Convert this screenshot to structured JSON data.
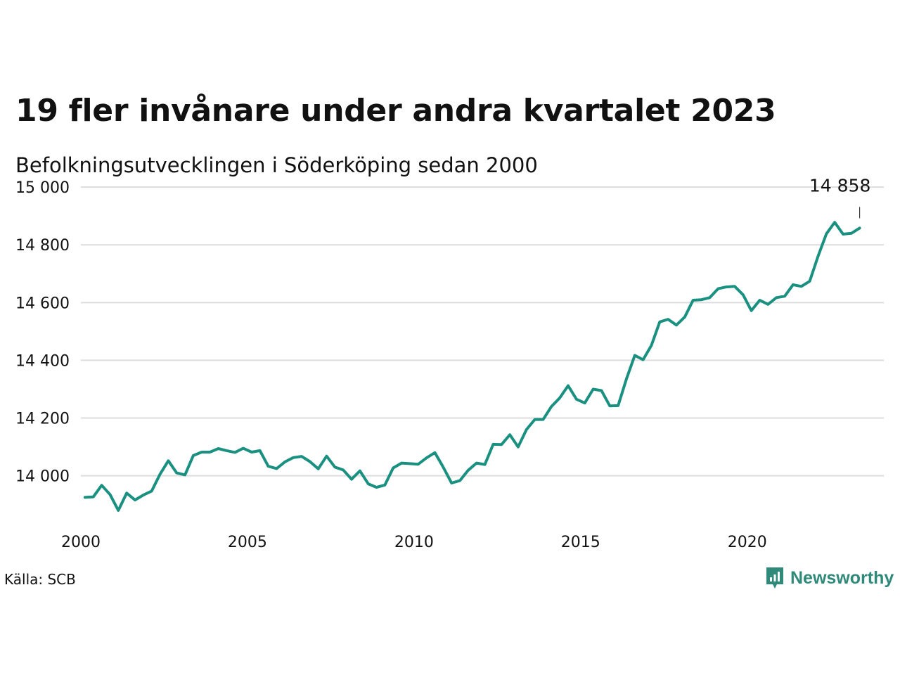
{
  "title": "19 fler invånare under andra kvartalet 2023",
  "subtitle": "Befolkningsutvecklingen i Söderköping sedan 2000",
  "source": "Källa: SCB",
  "brand": "Newsworthy",
  "colors": {
    "line": "#1a9080",
    "grid": "#dddddd",
    "brand": "#2f8a7a"
  },
  "chart_data": {
    "type": "line",
    "title": "19 fler invånare under andra kvartalet 2023",
    "subtitle": "Befolkningsutvecklingen i Söderköping sedan 2000",
    "xlabel": "",
    "ylabel": "",
    "xlim": [
      2000,
      2024.1
    ],
    "ylim": [
      13870,
      15010
    ],
    "yticks": [
      14000,
      14200,
      14400,
      14600,
      14800,
      15000
    ],
    "ytick_labels": [
      "14 000",
      "14 200",
      "14 400",
      "14 600",
      "14 800",
      "15 000"
    ],
    "xticks": [
      2000,
      2005,
      2010,
      2015,
      2020
    ],
    "xtick_labels": [
      "2000",
      "2005",
      "2010",
      "2015",
      "2020"
    ],
    "grid": true,
    "annotation": {
      "x": 2023.375,
      "y": 14858,
      "label": "14 858"
    },
    "series": [
      {
        "x": [
          2000.125,
          2000.375,
          2000.625,
          2000.875,
          2001.125,
          2001.375,
          2001.625,
          2001.875,
          2002.125,
          2002.375,
          2002.625,
          2002.875,
          2003.125,
          2003.375,
          2003.625,
          2003.875,
          2004.125,
          2004.375,
          2004.625,
          2004.875,
          2005.125,
          2005.375,
          2005.625,
          2005.875,
          2006.125,
          2006.375,
          2006.625,
          2006.875,
          2007.125,
          2007.375,
          2007.625,
          2007.875,
          2008.125,
          2008.375,
          2008.625,
          2008.875,
          2009.125,
          2009.375,
          2009.625,
          2009.875,
          2010.125,
          2010.375,
          2010.625,
          2010.875,
          2011.125,
          2011.375,
          2011.625,
          2011.875,
          2012.125,
          2012.375,
          2012.625,
          2012.875,
          2013.125,
          2013.375,
          2013.625,
          2013.875,
          2014.125,
          2014.375,
          2014.625,
          2014.875,
          2015.125,
          2015.375,
          2015.625,
          2015.875,
          2016.125,
          2016.375,
          2016.625,
          2016.875,
          2017.125,
          2017.375,
          2017.625,
          2017.875,
          2018.125,
          2018.375,
          2018.625,
          2018.875,
          2019.125,
          2019.375,
          2019.625,
          2019.875,
          2020.125,
          2020.375,
          2020.625,
          2020.875,
          2021.125,
          2021.375,
          2021.625,
          2021.875,
          2022.125,
          2022.375,
          2022.625,
          2022.875,
          2023.125,
          2023.375
        ],
        "values": [
          13925,
          13927,
          13967,
          13935,
          13880,
          13940,
          13916,
          13933,
          13947,
          14005,
          14052,
          14010,
          14003,
          14070,
          14082,
          14082,
          14094,
          14087,
          14081,
          14095,
          14082,
          14087,
          14033,
          14025,
          14048,
          14063,
          14067,
          14049,
          14024,
          14068,
          14030,
          14020,
          13988,
          14017,
          13972,
          13960,
          13968,
          14027,
          14044,
          14042,
          14040,
          14062,
          14080,
          14030,
          13975,
          13983,
          14019,
          14044,
          14039,
          14109,
          14108,
          14142,
          14100,
          14160,
          14195,
          14195,
          14240,
          14270,
          14312,
          14265,
          14252,
          14300,
          14295,
          14242,
          14243,
          14335,
          14417,
          14402,
          14452,
          14533,
          14542,
          14522,
          14550,
          14608,
          14610,
          14617,
          14648,
          14654,
          14656,
          14627,
          14572,
          14608,
          14594,
          14617,
          14622,
          14662,
          14656,
          14674,
          14760,
          14838,
          14878,
          14837,
          14840,
          14858
        ]
      }
    ]
  }
}
